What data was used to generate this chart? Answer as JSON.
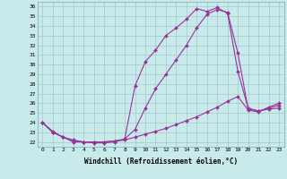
{
  "background_color": "#c8eaea",
  "grid_color": "#a8c8c8",
  "line_color": "#993399",
  "xlim_min": -0.5,
  "xlim_max": 23.5,
  "ylim_min": 21.5,
  "ylim_max": 36.5,
  "xticks": [
    0,
    1,
    2,
    3,
    4,
    5,
    6,
    7,
    8,
    9,
    10,
    11,
    12,
    13,
    14,
    15,
    16,
    17,
    18,
    19,
    20,
    21,
    22,
    23
  ],
  "yticks": [
    22,
    23,
    24,
    25,
    26,
    27,
    28,
    29,
    30,
    31,
    32,
    33,
    34,
    35,
    36
  ],
  "line1_x": [
    0,
    1,
    2,
    3,
    4,
    5,
    6,
    7,
    8,
    9,
    10,
    11,
    12,
    13,
    14,
    15,
    16,
    17,
    18,
    19,
    20,
    21,
    22,
    23
  ],
  "line1_y": [
    24.0,
    23.1,
    22.5,
    22.1,
    22.0,
    21.9,
    21.9,
    22.0,
    22.3,
    27.8,
    30.3,
    31.5,
    33.0,
    33.8,
    34.7,
    35.8,
    35.5,
    35.9,
    35.3,
    29.3,
    25.5,
    25.2,
    25.4,
    25.5
  ],
  "line2_x": [
    0,
    1,
    2,
    3,
    4,
    5,
    6,
    7,
    8,
    9,
    10,
    11,
    12,
    13,
    14,
    15,
    16,
    17,
    18,
    19,
    20,
    21,
    22,
    23
  ],
  "line2_y": [
    24.0,
    23.0,
    22.5,
    22.0,
    22.0,
    22.0,
    22.0,
    22.1,
    22.3,
    23.3,
    25.5,
    27.5,
    29.0,
    30.5,
    32.0,
    33.8,
    35.2,
    35.7,
    35.4,
    31.2,
    25.4,
    25.2,
    25.5,
    25.8
  ],
  "line3_x": [
    0,
    1,
    2,
    3,
    4,
    5,
    6,
    7,
    8,
    9,
    10,
    11,
    12,
    13,
    14,
    15,
    16,
    17,
    18,
    19,
    20,
    21,
    22,
    23
  ],
  "line3_y": [
    24.0,
    23.0,
    22.5,
    22.2,
    22.0,
    22.0,
    22.0,
    22.1,
    22.2,
    22.5,
    22.8,
    23.1,
    23.4,
    23.8,
    24.2,
    24.6,
    25.1,
    25.6,
    26.2,
    26.7,
    25.3,
    25.1,
    25.6,
    26.0
  ],
  "xlabel": "Windchill (Refroidissement éolien,°C)",
  "markersize": 2.0,
  "linewidth": 0.8,
  "tick_fontsize": 4.5,
  "xlabel_fontsize": 5.5
}
